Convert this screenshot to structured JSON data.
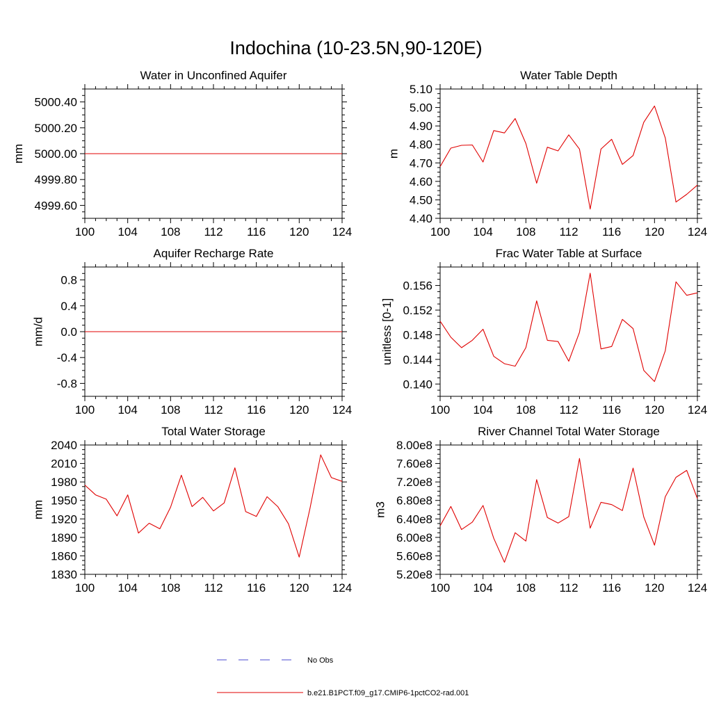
{
  "title": "Indochina (10-23.5N,90-120E)",
  "legend": {
    "placement": "bottom-center",
    "items": [
      {
        "label": "No Obs",
        "color": "#4a4ad0",
        "dash": "dashed"
      },
      {
        "label": "b.e21.B1PCT.f09_g17.CMIP6-1pctCO2-rad.001",
        "color": "#e00000",
        "dash": "solid"
      }
    ]
  },
  "chart_data": [
    {
      "type": "line",
      "title": "Water in Unconfined Aquifer",
      "ylabel": "mm",
      "xlim": [
        100,
        124
      ],
      "ylim": [
        4999.5,
        5000.5
      ],
      "xticks": [
        "100",
        "104",
        "108",
        "112",
        "116",
        "120",
        "124"
      ],
      "yticks": [
        {
          "v": 4999.6,
          "label": "4999.60"
        },
        {
          "v": 4999.8,
          "label": "4999.80"
        },
        {
          "v": 5000.0,
          "label": "5000.00"
        },
        {
          "v": 5000.2,
          "label": "5000.20"
        },
        {
          "v": 5000.4,
          "label": "5000.40"
        }
      ],
      "series": [
        {
          "color": "#e00000",
          "x": [
            100,
            101,
            102,
            103,
            104,
            105,
            106,
            107,
            108,
            109,
            110,
            111,
            112,
            113,
            114,
            115,
            116,
            117,
            118,
            119,
            120,
            121,
            122,
            123,
            124
          ],
          "y": [
            5000,
            5000,
            5000,
            5000,
            5000,
            5000,
            5000,
            5000,
            5000,
            5000,
            5000,
            5000,
            5000,
            5000,
            5000,
            5000,
            5000,
            5000,
            5000,
            5000,
            5000,
            5000,
            5000,
            5000,
            5000
          ]
        }
      ]
    },
    {
      "type": "line",
      "title": "Water Table Depth",
      "ylabel": "m",
      "xlim": [
        100,
        124
      ],
      "ylim": [
        4.4,
        5.1
      ],
      "xticks": [
        "100",
        "104",
        "108",
        "112",
        "116",
        "120",
        "124"
      ],
      "yticks": [
        {
          "v": 4.4,
          "label": "4.40"
        },
        {
          "v": 4.5,
          "label": "4.50"
        },
        {
          "v": 4.6,
          "label": "4.60"
        },
        {
          "v": 4.7,
          "label": "4.70"
        },
        {
          "v": 4.8,
          "label": "4.80"
        },
        {
          "v": 4.9,
          "label": "4.90"
        },
        {
          "v": 5.0,
          "label": "5.00"
        },
        {
          "v": 5.1,
          "label": "5.10"
        }
      ],
      "series": [
        {
          "color": "#e00000",
          "x": [
            100,
            101,
            102,
            103,
            104,
            105,
            106,
            107,
            108,
            109,
            110,
            111,
            112,
            113,
            114,
            115,
            116,
            117,
            118,
            119,
            120,
            121,
            122,
            123,
            124
          ],
          "y": [
            4.68,
            4.78,
            4.795,
            4.797,
            4.705,
            4.875,
            4.862,
            4.94,
            4.805,
            4.59,
            4.785,
            4.765,
            4.852,
            4.775,
            4.45,
            4.775,
            4.828,
            4.692,
            4.74,
            4.92,
            5.008,
            4.835,
            4.488,
            4.53,
            4.58
          ]
        }
      ]
    },
    {
      "type": "line",
      "title": "Aquifer Recharge Rate",
      "ylabel": "mm/d",
      "xlim": [
        100,
        124
      ],
      "ylim": [
        -1.0,
        1.0
      ],
      "xticks": [
        "100",
        "104",
        "108",
        "112",
        "116",
        "120",
        "124"
      ],
      "yticks": [
        {
          "v": -0.8,
          "label": "-0.8"
        },
        {
          "v": -0.4,
          "label": "-0.4"
        },
        {
          "v": 0.0,
          "label": "0.0"
        },
        {
          "v": 0.4,
          "label": "0.4"
        },
        {
          "v": 0.8,
          "label": "0.8"
        }
      ],
      "series": [
        {
          "color": "#e00000",
          "x": [
            100,
            101,
            102,
            103,
            104,
            105,
            106,
            107,
            108,
            109,
            110,
            111,
            112,
            113,
            114,
            115,
            116,
            117,
            118,
            119,
            120,
            121,
            122,
            123,
            124
          ],
          "y": [
            0,
            0,
            0,
            0,
            0,
            0,
            0,
            0,
            0,
            0,
            0,
            0,
            0,
            0,
            0,
            0,
            0,
            0,
            0,
            0,
            0,
            0,
            0,
            0,
            0
          ]
        }
      ]
    },
    {
      "type": "line",
      "title": "Frac Water Table at Surface",
      "ylabel": "unitless [0-1]",
      "xlim": [
        100,
        124
      ],
      "ylim": [
        0.138,
        0.159
      ],
      "xticks": [
        "100",
        "104",
        "108",
        "112",
        "116",
        "120",
        "124"
      ],
      "yticks": [
        {
          "v": 0.14,
          "label": "0.140"
        },
        {
          "v": 0.144,
          "label": "0.144"
        },
        {
          "v": 0.148,
          "label": "0.148"
        },
        {
          "v": 0.152,
          "label": "0.152"
        },
        {
          "v": 0.156,
          "label": "0.156"
        }
      ],
      "series": [
        {
          "color": "#e00000",
          "x": [
            100,
            101,
            102,
            103,
            104,
            105,
            106,
            107,
            108,
            109,
            110,
            111,
            112,
            113,
            114,
            115,
            116,
            117,
            118,
            119,
            120,
            121,
            122,
            123,
            124
          ],
          "y": [
            0.1502,
            0.1476,
            0.1459,
            0.1471,
            0.1489,
            0.1445,
            0.1433,
            0.1429,
            0.1459,
            0.1535,
            0.1471,
            0.1469,
            0.1437,
            0.1484,
            0.158,
            0.1457,
            0.1461,
            0.1505,
            0.149,
            0.1422,
            0.1404,
            0.1454,
            0.1566,
            0.1544,
            0.1548
          ]
        }
      ]
    },
    {
      "type": "line",
      "title": "Total Water Storage",
      "ylabel": "mm",
      "xlim": [
        100,
        124
      ],
      "ylim": [
        1830,
        2040
      ],
      "xticks": [
        "100",
        "104",
        "108",
        "112",
        "116",
        "120",
        "124"
      ],
      "yticks": [
        {
          "v": 1830,
          "label": "1830"
        },
        {
          "v": 1860,
          "label": "1860"
        },
        {
          "v": 1890,
          "label": "1890"
        },
        {
          "v": 1920,
          "label": "1920"
        },
        {
          "v": 1950,
          "label": "1950"
        },
        {
          "v": 1980,
          "label": "1980"
        },
        {
          "v": 2010,
          "label": "2010"
        },
        {
          "v": 2040,
          "label": "2040"
        }
      ],
      "series": [
        {
          "color": "#e00000",
          "x": [
            100,
            101,
            102,
            103,
            104,
            105,
            106,
            107,
            108,
            109,
            110,
            111,
            112,
            113,
            114,
            115,
            116,
            117,
            118,
            119,
            120,
            121,
            122,
            123,
            124
          ],
          "y": [
            1975,
            1959,
            1952,
            1925,
            1959,
            1897,
            1913,
            1904,
            1939,
            1991,
            1940,
            1955,
            1933,
            1946,
            2003,
            1932,
            1924,
            1956,
            1940,
            1912,
            1858,
            1937,
            2024,
            1987,
            1981
          ]
        }
      ]
    },
    {
      "type": "line",
      "title": "River Channel Total Water Storage",
      "ylabel": "m3",
      "xlim": [
        100,
        124
      ],
      "ylim": [
        520000000,
        800000000
      ],
      "xticks": [
        "100",
        "104",
        "108",
        "112",
        "116",
        "120",
        "124"
      ],
      "yticks": [
        {
          "v": 520000000,
          "label": "5.20e8"
        },
        {
          "v": 560000000,
          "label": "5.60e8"
        },
        {
          "v": 600000000,
          "label": "6.00e8"
        },
        {
          "v": 640000000,
          "label": "6.40e8"
        },
        {
          "v": 680000000,
          "label": "6.80e8"
        },
        {
          "v": 720000000,
          "label": "7.20e8"
        },
        {
          "v": 760000000,
          "label": "7.60e8"
        },
        {
          "v": 800000000,
          "label": "8.00e8"
        }
      ],
      "series": [
        {
          "color": "#e00000",
          "x": [
            100,
            101,
            102,
            103,
            104,
            105,
            106,
            107,
            108,
            109,
            110,
            111,
            112,
            113,
            114,
            115,
            116,
            117,
            118,
            119,
            120,
            121,
            122,
            123,
            124
          ],
          "y": [
            625000000,
            667000000,
            617000000,
            633000000,
            669000000,
            598000000,
            546000000,
            610000000,
            592000000,
            725000000,
            643000000,
            631000000,
            645000000,
            771000000,
            620000000,
            676000000,
            671000000,
            658000000,
            750000000,
            644000000,
            583000000,
            688000000,
            730000000,
            745000000,
            684000000
          ]
        }
      ]
    }
  ]
}
